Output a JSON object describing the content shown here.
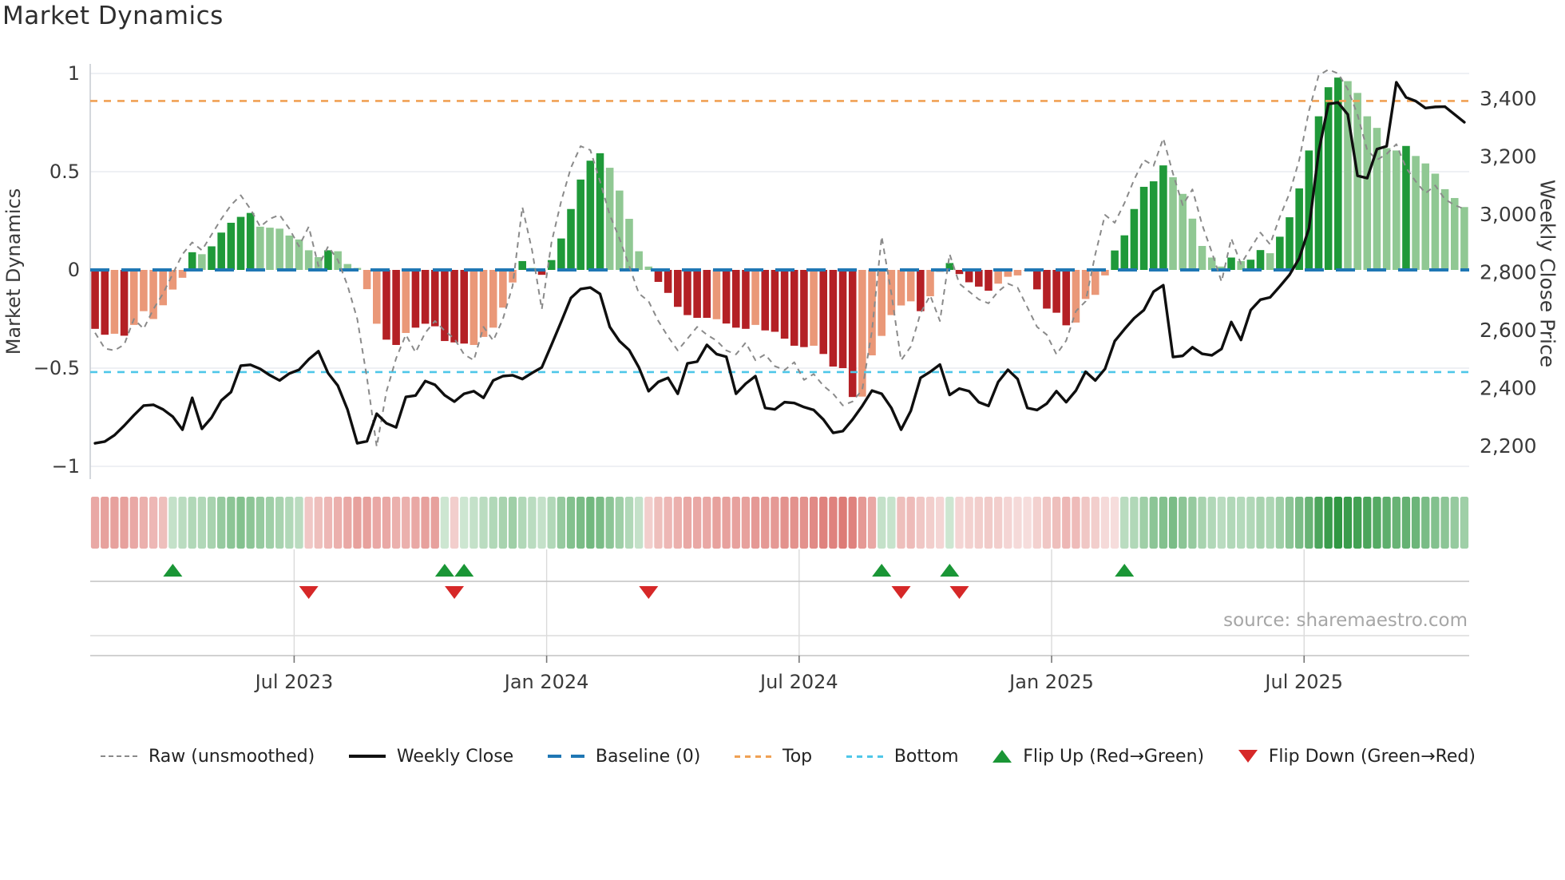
{
  "title": "Market Dynamics",
  "source_note": "source: sharemaestro.com",
  "left_axis_label": "Market Dynamics",
  "right_axis_label": "Weekly Close Price",
  "legend": {
    "items": [
      {
        "label": "Raw (unsmoothed)",
        "type": "raw"
      },
      {
        "label": "Weekly Close",
        "type": "close"
      },
      {
        "label": "Baseline (0)",
        "type": "baseline"
      },
      {
        "label": "Top",
        "type": "top"
      },
      {
        "label": "Bottom",
        "type": "bottom"
      },
      {
        "label": "Flip Up (Red→Green)",
        "type": "flipup"
      },
      {
        "label": "Flip Down (Green→Red)",
        "type": "flipdown"
      }
    ]
  },
  "palette": {
    "dg": "#1f9939",
    "lg": "#90c893",
    "dr": "#b42025",
    "lr": "#ea9878",
    "baseline": "#1f77b4",
    "top_line": "#f0a154",
    "bottom_line": "#4fc7e8",
    "raw_line": "#8a8a8a",
    "price_line": "#0f0f0f",
    "grid": "#e9ebf0",
    "spine": "#c9cdd4",
    "band_line": "#c2c2c2",
    "band_line_light": "#dcdcdc",
    "tick_text": "#3a3a3a",
    "heat_green": "26,140,46",
    "heat_red": "202,50,42",
    "flip_up": "#1a9636",
    "flip_down": "#d62828"
  },
  "chart_data": {
    "type": "combo",
    "weeks": 142,
    "reference_lines": {
      "baseline": 0,
      "top": 0.86,
      "bottom": -0.52
    },
    "left_axis": {
      "ticks": [
        "1",
        "0.5",
        "0",
        "−0.5",
        "−1"
      ],
      "tick_values": [
        1,
        0.5,
        0,
        -0.5,
        -1
      ],
      "range": [
        -1,
        1
      ]
    },
    "right_axis": {
      "ticks": [
        "3,400",
        "3,200",
        "3,000",
        "2,800",
        "2,600",
        "2,400",
        "2,200"
      ],
      "tick_values": [
        3400,
        3200,
        3000,
        2800,
        2600,
        2400,
        2200
      ]
    },
    "x_axis": {
      "ticks": [
        {
          "label": "Jul 2023",
          "week": 20.5
        },
        {
          "label": "Jan 2024",
          "week": 46.5
        },
        {
          "label": "Jul 2024",
          "week": 72.5
        },
        {
          "label": "Jan 2025",
          "week": 98.5
        },
        {
          "label": "Jul 2025",
          "week": 124.5
        }
      ]
    },
    "markers": {
      "flip_up_weeks": [
        8,
        36,
        38,
        81,
        88,
        106
      ],
      "flip_down_weeks": [
        22,
        37,
        57,
        83,
        89
      ]
    },
    "series": [
      {
        "name": "Market Dynamics (smoothed bars)",
        "type": "bar",
        "values": [
          -0.3,
          -0.33,
          -0.325,
          -0.335,
          -0.28,
          -0.21,
          -0.25,
          -0.18,
          -0.1,
          -0.04,
          0.09,
          0.08,
          0.12,
          0.19,
          0.24,
          0.27,
          0.29,
          0.22,
          0.215,
          0.21,
          0.175,
          0.155,
          0.1,
          0.065,
          0.1,
          0.095,
          0.03,
          0.01,
          -0.098,
          -0.274,
          -0.355,
          -0.382,
          -0.321,
          -0.294,
          -0.274,
          -0.287,
          -0.362,
          -0.369,
          -0.375,
          -0.382,
          -0.341,
          -0.294,
          -0.192,
          -0.064,
          0.045,
          0.01,
          -0.025,
          0.05,
          0.16,
          0.31,
          0.46,
          0.556,
          0.594,
          0.52,
          0.404,
          0.26,
          0.095,
          0.017,
          -0.061,
          -0.117,
          -0.188,
          -0.23,
          -0.244,
          -0.244,
          -0.251,
          -0.273,
          -0.294,
          -0.3,
          -0.28,
          -0.308,
          -0.315,
          -0.35,
          -0.386,
          -0.393,
          -0.386,
          -0.428,
          -0.492,
          -0.5,
          -0.647,
          -0.645,
          -0.435,
          -0.336,
          -0.23,
          -0.181,
          -0.16,
          -0.21,
          -0.134,
          -0.01,
          0.035,
          -0.021,
          -0.063,
          -0.085,
          -0.106,
          -0.07,
          -0.035,
          -0.028,
          -0.005,
          -0.099,
          -0.197,
          -0.218,
          -0.282,
          -0.268,
          -0.148,
          -0.127,
          -0.028,
          0.099,
          0.176,
          0.31,
          0.423,
          0.451,
          0.532,
          0.472,
          0.387,
          0.261,
          0.122,
          0.063,
          0.017,
          0.063,
          0.045,
          0.052,
          0.101,
          0.085,
          0.169,
          0.268,
          0.415,
          0.608,
          0.782,
          0.93,
          0.979,
          0.961,
          0.901,
          0.782,
          0.723,
          0.62,
          0.608,
          0.631,
          0.58,
          0.542,
          0.49,
          0.411,
          0.366,
          0.32
        ],
        "bar_colors": [
          "dr",
          "dr",
          "lr",
          "dr",
          "lr",
          "lr",
          "lr",
          "lr",
          "lr",
          "lr",
          "dg",
          "lg",
          "dg",
          "dg",
          "dg",
          "dg",
          "dg",
          "lg",
          "lg",
          "lg",
          "lg",
          "lg",
          "lg",
          "lg",
          "dg",
          "lg",
          "lg",
          "lg",
          "lr",
          "lr",
          "dr",
          "dr",
          "lr",
          "dr",
          "dr",
          "dr",
          "dr",
          "dr",
          "dr",
          "lr",
          "lr",
          "lr",
          "lr",
          "lr",
          "dg",
          "lg",
          "dr",
          "dg",
          "dg",
          "dg",
          "dg",
          "dg",
          "dg",
          "lg",
          "lg",
          "lg",
          "lg",
          "lg",
          "dr",
          "dr",
          "dr",
          "dr",
          "dr",
          "dr",
          "lr",
          "dr",
          "dr",
          "dr",
          "lr",
          "dr",
          "dr",
          "dr",
          "dr",
          "dr",
          "lr",
          "dr",
          "dr",
          "dr",
          "dr",
          "lr",
          "lr",
          "lr",
          "lr",
          "lr",
          "lr",
          "dr",
          "lr",
          "lr",
          "dg",
          "dr",
          "dr",
          "dr",
          "dr",
          "lr",
          "lr",
          "lr",
          "lr",
          "dr",
          "dr",
          "dr",
          "dr",
          "lr",
          "lr",
          "lr",
          "lr",
          "dg",
          "dg",
          "dg",
          "dg",
          "dg",
          "dg",
          "lg",
          "lg",
          "lg",
          "lg",
          "lg",
          "lg",
          "dg",
          "lg",
          "dg",
          "dg",
          "lg",
          "dg",
          "dg",
          "dg",
          "dg",
          "dg",
          "dg",
          "dg",
          "lg",
          "lg",
          "lg",
          "lg",
          "lg",
          "lg",
          "dg",
          "lg",
          "lg",
          "lg",
          "lg",
          "lg",
          "lg"
        ]
      },
      {
        "name": "Raw (unsmoothed)",
        "type": "line",
        "values": [
          -0.32,
          -0.4,
          -0.41,
          -0.38,
          -0.25,
          -0.3,
          -0.2,
          -0.12,
          -0.02,
          0.08,
          0.14,
          0.1,
          0.18,
          0.26,
          0.33,
          0.38,
          0.31,
          0.22,
          0.26,
          0.28,
          0.21,
          0.12,
          0.22,
          0.02,
          0.12,
          0.05,
          -0.08,
          -0.25,
          -0.55,
          -0.9,
          -0.62,
          -0.45,
          -0.33,
          -0.42,
          -0.32,
          -0.26,
          -0.31,
          -0.35,
          -0.43,
          -0.46,
          -0.29,
          -0.36,
          -0.25,
          -0.08,
          0.32,
          0.1,
          -0.2,
          0.14,
          0.35,
          0.52,
          0.63,
          0.61,
          0.45,
          0.28,
          0.16,
          0.02,
          -0.12,
          -0.16,
          -0.26,
          -0.34,
          -0.41,
          -0.35,
          -0.29,
          -0.33,
          -0.36,
          -0.41,
          -0.43,
          -0.37,
          -0.46,
          -0.43,
          -0.49,
          -0.51,
          -0.47,
          -0.56,
          -0.53,
          -0.59,
          -0.63,
          -0.69,
          -0.67,
          -0.61,
          -0.31,
          0.17,
          -0.12,
          -0.46,
          -0.39,
          -0.22,
          -0.13,
          -0.26,
          0.08,
          -0.07,
          -0.11,
          -0.15,
          -0.17,
          -0.11,
          -0.07,
          -0.09,
          -0.19,
          -0.29,
          -0.33,
          -0.43,
          -0.36,
          -0.21,
          -0.16,
          0.08,
          0.28,
          0.24,
          0.34,
          0.46,
          0.56,
          0.53,
          0.67,
          0.49,
          0.33,
          0.41,
          0.23,
          0.09,
          -0.06,
          0.16,
          0.03,
          0.11,
          0.19,
          0.13,
          0.27,
          0.39,
          0.56,
          0.81,
          0.99,
          1.02,
          1.0,
          0.92,
          0.79,
          0.61,
          0.56,
          0.59,
          0.64,
          0.52,
          0.45,
          0.39,
          0.43,
          0.36,
          0.33,
          0.31
        ]
      },
      {
        "name": "Weekly Close",
        "type": "line",
        "axis": "right",
        "values": [
          2208,
          2214,
          2236,
          2269,
          2305,
          2338,
          2341,
          2325,
          2300,
          2255,
          2365,
          2258,
          2297,
          2356,
          2385,
          2476,
          2479,
          2465,
          2443,
          2425,
          2449,
          2462,
          2498,
          2526,
          2450,
          2407,
          2324,
          2208,
          2215,
          2310,
          2277,
          2263,
          2368,
          2373,
          2423,
          2410,
          2374,
          2352,
          2379,
          2388,
          2365,
          2425,
          2440,
          2443,
          2430,
          2451,
          2470,
          2548,
          2628,
          2710,
          2741,
          2746,
          2724,
          2610,
          2561,
          2530,
          2470,
          2388,
          2420,
          2434,
          2379,
          2484,
          2490,
          2548,
          2516,
          2507,
          2379,
          2414,
          2440,
          2330,
          2325,
          2350,
          2347,
          2333,
          2323,
          2290,
          2244,
          2250,
          2290,
          2337,
          2390,
          2379,
          2330,
          2255,
          2320,
          2434,
          2455,
          2480,
          2375,
          2397,
          2388,
          2350,
          2337,
          2420,
          2462,
          2430,
          2330,
          2323,
          2345,
          2388,
          2350,
          2390,
          2455,
          2425,
          2465,
          2561,
          2602,
          2640,
          2668,
          2732,
          2754,
          2506,
          2510,
          2540,
          2517,
          2512,
          2534,
          2627,
          2565,
          2668,
          2704,
          2712,
          2750,
          2790,
          2847,
          2950,
          3215,
          3380,
          3385,
          3344,
          3132,
          3124,
          3224,
          3234,
          3455,
          3403,
          3390,
          3366,
          3370,
          3371,
          3344,
          3317
        ]
      },
      {
        "name": "Trend heatmap",
        "type": "heatmap",
        "values": [
          -0.45,
          -0.5,
          -0.5,
          -0.5,
          -0.45,
          -0.4,
          -0.35,
          -0.3,
          0.2,
          0.25,
          0.3,
          0.3,
          0.35,
          0.45,
          0.5,
          0.55,
          0.5,
          0.45,
          0.4,
          0.35,
          0.3,
          0.25,
          -0.25,
          -0.3,
          -0.35,
          -0.4,
          -0.45,
          -0.5,
          -0.5,
          -0.45,
          -0.45,
          -0.4,
          -0.4,
          -0.45,
          -0.5,
          -0.5,
          0.15,
          -0.2,
          0.15,
          0.2,
          0.25,
          0.3,
          0.35,
          0.4,
          0.3,
          0.25,
          0.2,
          0.3,
          0.45,
          0.55,
          0.6,
          0.65,
          0.6,
          0.5,
          0.4,
          0.3,
          0.2,
          -0.2,
          -0.3,
          -0.35,
          -0.4,
          -0.45,
          -0.45,
          -0.45,
          -0.5,
          -0.5,
          -0.5,
          -0.5,
          -0.55,
          -0.55,
          -0.55,
          -0.6,
          -0.6,
          -0.6,
          -0.65,
          -0.7,
          -0.7,
          -0.75,
          -0.7,
          -0.55,
          -0.45,
          0.2,
          0.18,
          -0.3,
          -0.32,
          -0.25,
          -0.2,
          -0.15,
          0.15,
          -0.15,
          -0.18,
          -0.2,
          -0.22,
          -0.2,
          -0.15,
          -0.12,
          -0.1,
          -0.18,
          -0.25,
          -0.3,
          -0.35,
          -0.32,
          -0.25,
          -0.2,
          -0.12,
          -0.1,
          0.25,
          0.3,
          0.4,
          0.5,
          0.55,
          0.6,
          0.5,
          0.45,
          0.35,
          0.3,
          0.25,
          0.3,
          0.28,
          0.3,
          0.35,
          0.32,
          0.4,
          0.5,
          0.6,
          0.7,
          0.85,
          0.95,
          1.0,
          0.95,
          0.9,
          0.85,
          0.8,
          0.75,
          0.7,
          0.72,
          0.68,
          0.6,
          0.55,
          0.5,
          0.45,
          0.4
        ]
      }
    ]
  }
}
